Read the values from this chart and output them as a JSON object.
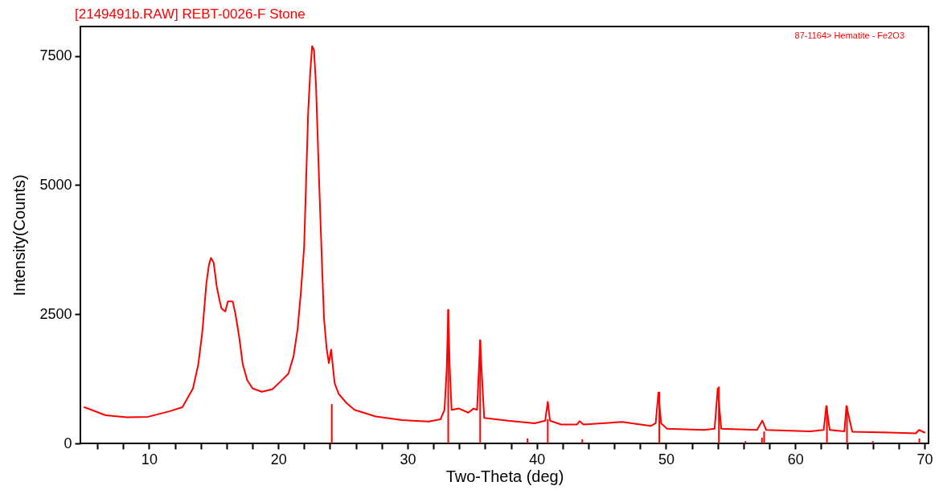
{
  "chart_data": {
    "type": "line",
    "title": "[2149491b.RAW] REBT-0026-F Stone",
    "xlabel": "Two-Theta (deg)",
    "ylabel": "Intensity(Counts)",
    "annotations": [
      "87-1164> Hematite - Fe2O3"
    ],
    "xlim": [
      5,
      70
    ],
    "ylim": [
      0,
      8070
    ],
    "xticks": [
      {
        "value": 6,
        "label": null
      },
      {
        "value": 8,
        "label": null
      },
      10,
      {
        "value": 12,
        "label": null
      },
      {
        "value": 14,
        "label": null
      },
      {
        "value": 16,
        "label": null
      },
      {
        "value": 18,
        "label": null
      },
      20,
      {
        "value": 22,
        "label": null
      },
      {
        "value": 24,
        "label": null
      },
      {
        "value": 26,
        "label": null
      },
      {
        "value": 28,
        "label": null
      },
      30,
      {
        "value": 32,
        "label": null
      },
      {
        "value": 34,
        "label": null
      },
      {
        "value": 36,
        "label": null
      },
      {
        "value": 38,
        "label": null
      },
      40,
      {
        "value": 42,
        "label": null
      },
      {
        "value": 44,
        "label": null
      },
      {
        "value": 46,
        "label": null
      },
      {
        "value": 48,
        "label": null
      },
      50,
      {
        "value": 52,
        "label": null
      },
      {
        "value": 54,
        "label": null
      },
      {
        "value": 56,
        "label": null
      },
      {
        "value": 58,
        "label": null
      },
      60,
      {
        "value": 62,
        "label": null
      },
      {
        "value": 64,
        "label": null
      },
      {
        "value": 66,
        "label": null
      },
      {
        "value": 68,
        "label": null
      },
      70
    ],
    "yticks": [
      0,
      2500,
      5000,
      7500
    ],
    "grid": false,
    "marker": "none",
    "line_style": "solid",
    "series": [
      {
        "color": "#ff0000",
        "x": [
          5.0,
          6.64,
          8.28,
          9.92,
          11.56,
          12.58,
          13.4,
          13.81,
          14.12,
          14.43,
          14.63,
          14.79,
          15.0,
          15.24,
          15.45,
          15.61,
          15.9,
          16.1,
          16.47,
          16.68,
          16.98,
          17.25,
          17.6,
          18.01,
          18.73,
          19.55,
          20.16,
          20.78,
          21.18,
          21.49,
          21.75,
          22.0,
          22.31,
          22.47,
          22.62,
          22.76,
          22.92,
          23.12,
          23.39,
          23.54,
          23.74,
          23.91,
          24.09,
          24.36,
          24.67,
          25.28,
          25.9,
          27.54,
          29.59,
          31.63,
          32.55,
          32.86,
          33.03,
          33.15,
          33.27,
          33.41,
          33.98,
          34.7,
          35.11,
          35.38,
          35.52,
          35.62,
          35.73,
          35.93,
          37.77,
          39.83,
          40.65,
          40.85,
          41.02,
          41.88,
          43.1,
          43.31,
          43.61,
          46.6,
          48.02,
          48.84,
          49.2,
          49.41,
          49.62,
          50.07,
          52.94,
          53.76,
          54.0,
          54.27,
          57.04,
          57.45,
          57.75,
          61.13,
          62.2,
          62.4,
          62.67,
          63.8,
          63.96,
          64.41,
          67.28,
          69.33,
          69.57,
          70.0
        ],
        "values": [
          700,
          545,
          505,
          515,
          620,
          700,
          1065,
          1530,
          2150,
          3085,
          3450,
          3590,
          3500,
          3030,
          2775,
          2610,
          2555,
          2750,
          2750,
          2515,
          2050,
          1530,
          1220,
          1065,
          1000,
          1050,
          1195,
          1350,
          1685,
          2205,
          2930,
          3810,
          6400,
          7180,
          7690,
          7620,
          6920,
          5365,
          3400,
          2410,
          1840,
          1555,
          1815,
          1165,
          960,
          780,
          650,
          520,
          450,
          425,
          465,
          650,
          1425,
          2590,
          1425,
          650,
          675,
          595,
          675,
          650,
          1425,
          2000,
          1425,
          495,
          440,
          390,
          440,
          805,
          440,
          365,
          365,
          430,
          365,
          415,
          365,
          340,
          390,
          985,
          390,
          285,
          260,
          285,
          1065,
          285,
          260,
          440,
          260,
          235,
          260,
          725,
          260,
          235,
          725,
          225,
          210,
          195,
          260,
          210
        ]
      },
      {
        "type": "bar",
        "color": "#ff0000",
        "x": [
          24.14,
          33.15,
          35.62,
          39.28,
          40.85,
          43.52,
          49.48,
          54.09,
          56.15,
          57.42,
          57.59,
          62.45,
          64.0,
          66.0,
          69.6
        ],
        "values": [
          760,
          2590,
          2000,
          95,
          470,
          80,
          1000,
          1100,
          45,
          110,
          230,
          725,
          725,
          45,
          95
        ]
      }
    ]
  }
}
